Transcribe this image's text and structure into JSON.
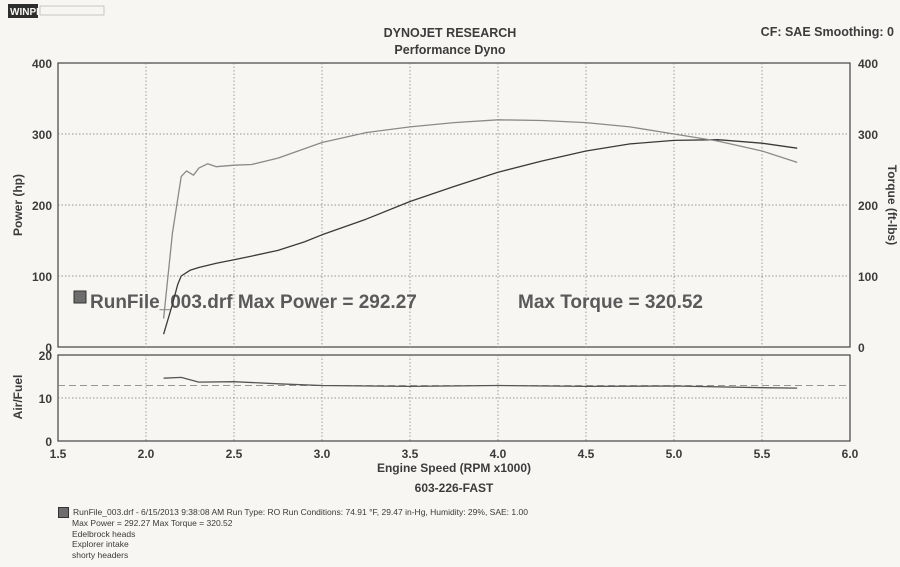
{
  "header": {
    "logo_text": "WINPEP",
    "title": "DYNOJET RESEARCH",
    "subtitle": "Performance Dyno",
    "cf": "CF: SAE  Smoothing: 0"
  },
  "chart_data": [
    {
      "type": "line",
      "panel": "power-torque",
      "ylabel_left": "Power (hp)",
      "ylabel_right": "Torque (ft-lbs)",
      "ylim": [
        0,
        400
      ],
      "yticks": [
        "0",
        "100",
        "200",
        "300",
        "400"
      ],
      "right_yticks": [
        "0",
        "100",
        "200",
        "300",
        "400"
      ],
      "xlim": [
        1.5,
        6.0
      ],
      "grid": true,
      "annotation": {
        "file": "RunFile_003.drf",
        "power_label": "Max Power = 292.27",
        "torque_label": "Max Torque = 320.52"
      },
      "series": [
        {
          "name": "Power",
          "axis": "left",
          "color": "#3a3a3a",
          "x": [
            2.1,
            2.15,
            2.18,
            2.2,
            2.25,
            2.3,
            2.35,
            2.4,
            2.5,
            2.6,
            2.75,
            2.9,
            3.0,
            3.25,
            3.5,
            3.75,
            4.0,
            4.25,
            4.5,
            4.75,
            5.0,
            5.25,
            5.5,
            5.7
          ],
          "y": [
            18,
            60,
            88,
            100,
            108,
            112,
            115,
            118,
            123,
            128,
            136,
            148,
            158,
            180,
            205,
            226,
            246,
            262,
            276,
            286,
            291,
            292,
            287,
            280
          ]
        },
        {
          "name": "Torque",
          "axis": "right",
          "color": "#8a8a8a",
          "x": [
            2.1,
            2.15,
            2.2,
            2.23,
            2.27,
            2.3,
            2.35,
            2.4,
            2.5,
            2.6,
            2.75,
            3.0,
            3.25,
            3.5,
            3.75,
            4.0,
            4.25,
            4.5,
            4.75,
            5.0,
            5.25,
            5.5,
            5.7
          ],
          "y": [
            40,
            160,
            240,
            248,
            242,
            252,
            258,
            254,
            256,
            257,
            266,
            288,
            302,
            310,
            316,
            320,
            319,
            316,
            310,
            300,
            290,
            276,
            260
          ]
        }
      ]
    },
    {
      "type": "line",
      "panel": "air-fuel",
      "ylabel": "Air/Fuel",
      "ylim": [
        0,
        20
      ],
      "yticks": [
        "0",
        "10",
        "20"
      ],
      "xlim": [
        1.5,
        6.0
      ],
      "xticks": [
        "1.5",
        "2.0",
        "2.5",
        "3.0",
        "3.5",
        "4.0",
        "4.5",
        "5.0",
        "5.5",
        "6.0"
      ],
      "xlabel": "Engine Speed (RPM x1000)",
      "grid": true,
      "reference_line": 12.9,
      "series": [
        {
          "name": "Air/Fuel",
          "color": "#555555",
          "x": [
            2.1,
            2.2,
            2.3,
            2.5,
            2.75,
            3.0,
            3.5,
            4.0,
            4.5,
            5.0,
            5.5,
            5.7
          ],
          "y": [
            14.6,
            14.8,
            13.7,
            13.8,
            13.3,
            12.9,
            12.7,
            12.9,
            12.7,
            12.8,
            12.4,
            12.3
          ]
        }
      ]
    }
  ],
  "run_id": "603-226-FAST",
  "footer": {
    "line1": "RunFile_003.drf - 6/15/2013 9:38:08 AM  Run Type: RO  Run Conditions: 74.91 °F, 29.47 in-Hg,  Humidity: 29%, SAE: 1.00",
    "line2": "Max Power = 292.27  Max Torque = 320.52",
    "notes": [
      "Edelbrock heads",
      "Explorer intake",
      "shorty headers"
    ]
  }
}
